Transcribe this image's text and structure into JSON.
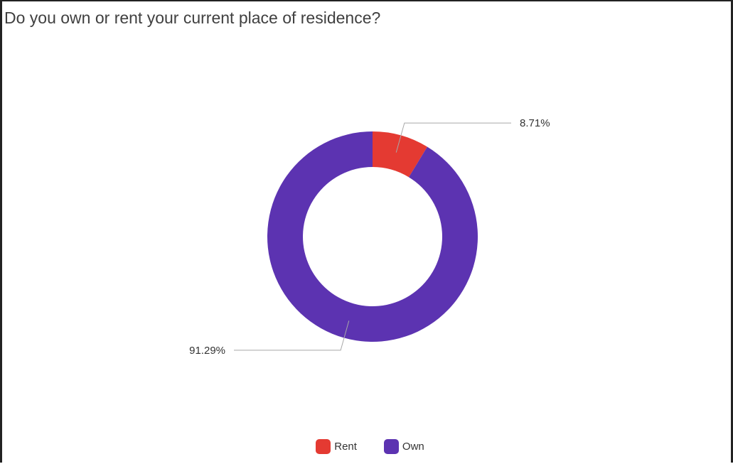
{
  "chart_data": {
    "type": "pie",
    "donut": true,
    "title": "Do you own or rent your current place of residence?",
    "categories": [
      "Rent",
      "Own"
    ],
    "values": [
      8.71,
      91.29
    ],
    "data_labels": [
      "8.71%",
      "91.29%"
    ],
    "colors": [
      "#e43a32",
      "#5c33b1"
    ],
    "legend": {
      "position": "bottom-center",
      "items": [
        {
          "label": "Rent",
          "color": "#e43a32"
        },
        {
          "label": "Own",
          "color": "#5c33b1"
        }
      ]
    }
  }
}
